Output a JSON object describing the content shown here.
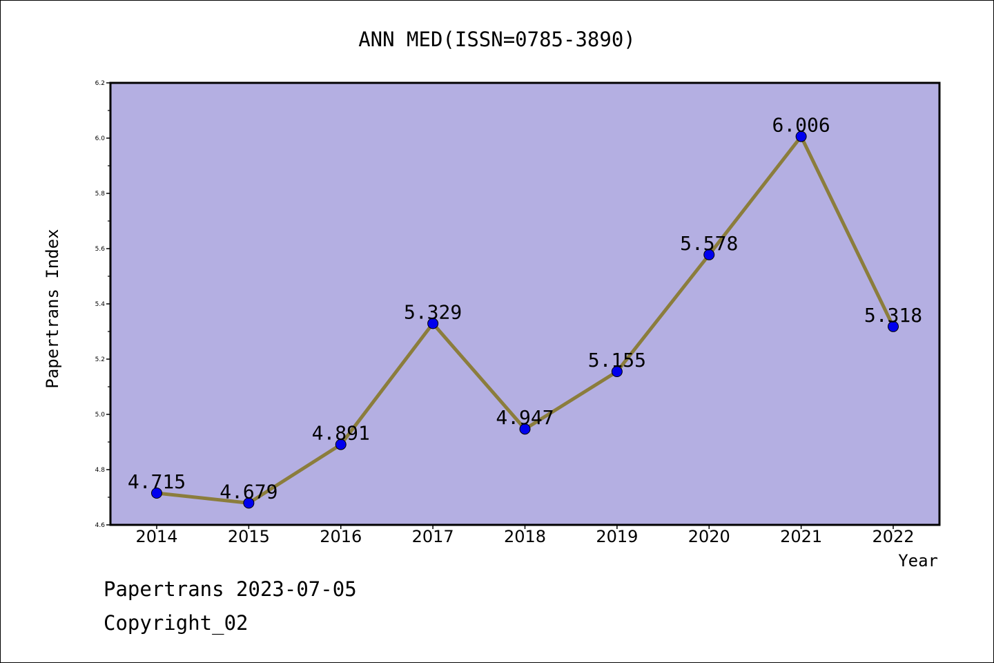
{
  "chart_data": {
    "type": "line",
    "title": "ANN MED(ISSN=0785-3890)",
    "xlabel": "Year",
    "ylabel": "Papertrans Index",
    "categories": [
      "2014",
      "2015",
      "2016",
      "2017",
      "2018",
      "2019",
      "2020",
      "2021",
      "2022"
    ],
    "values": [
      4.715,
      4.679,
      4.891,
      5.329,
      4.947,
      5.155,
      5.578,
      6.006,
      5.318
    ],
    "data_labels": [
      "4.715",
      "4.679",
      "4.891",
      "5.329",
      "4.947",
      "5.155",
      "5.578",
      "6.006",
      "5.318"
    ],
    "ylim": [
      4.6,
      6.2
    ],
    "yticks": [
      "4.6",
      "4.8",
      "5.0",
      "5.2",
      "5.4",
      "5.6",
      "5.8",
      "6.0",
      "6.2"
    ],
    "grid": false,
    "colors": {
      "plot_background": "#b4afe2",
      "line": "#8b7d3c",
      "marker": "#0000ee"
    }
  },
  "footer": {
    "line1": "Papertrans 2023-07-05",
    "line2": "Copyright_02"
  }
}
